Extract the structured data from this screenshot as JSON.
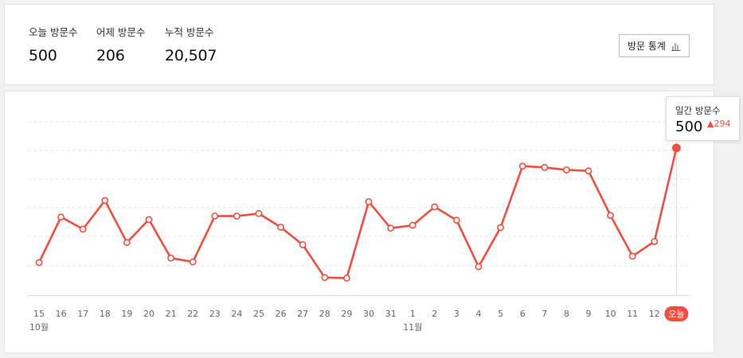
{
  "summary": {
    "today": {
      "label": "오늘 방문수",
      "value": "500"
    },
    "yesterday": {
      "label": "어제 방문수",
      "value": "206"
    },
    "total": {
      "label": "누적 방문수",
      "value": "20,507"
    },
    "stats_button_label": "방문 통계",
    "stats_button_icon": "bar-chart-icon"
  },
  "tooltip": {
    "label": "일간 방문수",
    "value": "500",
    "change": "294",
    "change_direction": "up"
  },
  "colors": {
    "line": "#f04e3e",
    "today_badge": "#f04e3e",
    "grid": "#e5e5e5"
  },
  "chart_data": {
    "type": "line",
    "title": "",
    "xlabel": "",
    "ylabel": "",
    "grid": true,
    "categories": [
      "15",
      "16",
      "17",
      "18",
      "19",
      "20",
      "21",
      "22",
      "23",
      "24",
      "25",
      "26",
      "27",
      "28",
      "29",
      "30",
      "31",
      "1",
      "2",
      "3",
      "4",
      "5",
      "6",
      "7",
      "8",
      "9",
      "10",
      "11",
      "12",
      "오늘"
    ],
    "month_labels": [
      {
        "at": "15",
        "text": "10월"
      },
      {
        "at": "1",
        "text": "11월"
      }
    ],
    "highlight_label": "오늘",
    "ylim": [
      0,
      640
    ],
    "series": [
      {
        "values": [
          140,
          283,
          245,
          335,
          203,
          275,
          154,
          142,
          286,
          286,
          294,
          251,
          196,
          93,
          91,
          331,
          248,
          257,
          315,
          273,
          127,
          250,
          443,
          439,
          431,
          428,
          288,
          160,
          206,
          500
        ]
      }
    ]
  }
}
